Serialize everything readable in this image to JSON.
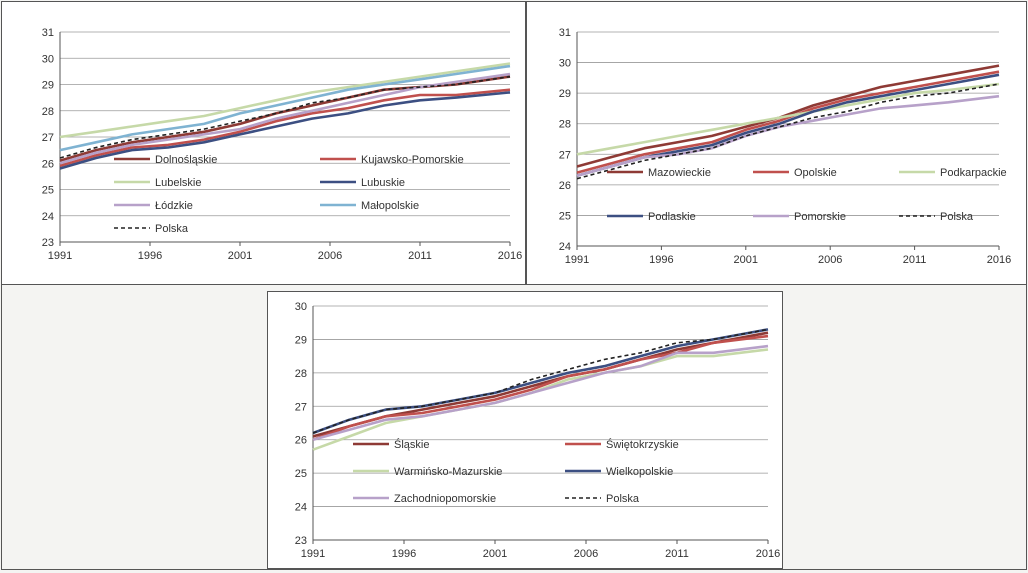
{
  "charts": [
    {
      "id": "tl",
      "legend": [
        {
          "label": "Dolnośląskie",
          "color": "#8e3a35",
          "dash": false
        },
        {
          "label": "Kujawsko-Pomorskie",
          "color": "#c0504d",
          "dash": false
        },
        {
          "label": "Lubelskie",
          "color": "#c6d9a8",
          "dash": false
        },
        {
          "label": "Lubuskie",
          "color": "#3c4f82",
          "dash": false
        },
        {
          "label": "Łódzkie",
          "color": "#b7a1c9",
          "dash": false
        },
        {
          "label": "Małopolskie",
          "color": "#7fb3d2",
          "dash": false
        },
        {
          "label": "Polska",
          "color": "#222222",
          "dash": true
        }
      ]
    },
    {
      "id": "tr",
      "legend": [
        {
          "label": "Mazowieckie",
          "color": "#8e3a35",
          "dash": false
        },
        {
          "label": "Opolskie",
          "color": "#c0504d",
          "dash": false
        },
        {
          "label": "Podkarpackie",
          "color": "#c6d9a8",
          "dash": false
        },
        {
          "label": "Podlaskie",
          "color": "#3c4f82",
          "dash": false
        },
        {
          "label": "Pomorskie",
          "color": "#b7a1c9",
          "dash": false
        },
        {
          "label": "Polska",
          "color": "#222222",
          "dash": true
        }
      ]
    },
    {
      "id": "bc",
      "legend": [
        {
          "label": "Śląskie",
          "color": "#8e3a35",
          "dash": false
        },
        {
          "label": "Świętokrzyskie",
          "color": "#c0504d",
          "dash": false
        },
        {
          "label": "Warmińsko-Mazurskie",
          "color": "#c6d9a8",
          "dash": false
        },
        {
          "label": "Wielkopolskie",
          "color": "#3c4f82",
          "dash": false
        },
        {
          "label": "Zachodniopomorskie",
          "color": "#b7a1c9",
          "dash": false
        },
        {
          "label": "Polska",
          "color": "#222222",
          "dash": true
        }
      ]
    }
  ],
  "chart_data": [
    {
      "type": "line",
      "x_ticks": [
        "1991",
        "1996",
        "2001",
        "2006",
        "2011",
        "2016"
      ],
      "x_range": [
        1991,
        2016
      ],
      "ylim": [
        23,
        31
      ],
      "y_ticks": [
        23,
        24,
        25,
        26,
        27,
        28,
        29,
        30,
        31
      ],
      "grid": true,
      "legend_position": "inside-bottom",
      "series": [
        {
          "name": "Dolnośląskie",
          "x": [
            1991,
            1993,
            1995,
            1997,
            1999,
            2001,
            2003,
            2005,
            2007,
            2009,
            2011,
            2013,
            2016
          ],
          "y": [
            26.1,
            26.5,
            26.8,
            27.0,
            27.2,
            27.5,
            27.9,
            28.2,
            28.5,
            28.8,
            28.9,
            29.0,
            29.3
          ]
        },
        {
          "name": "Kujawsko-Pomorskie",
          "x": [
            1991,
            1993,
            1995,
            1997,
            1999,
            2001,
            2003,
            2005,
            2007,
            2009,
            2011,
            2013,
            2016
          ],
          "y": [
            25.9,
            26.3,
            26.6,
            26.7,
            26.9,
            27.2,
            27.6,
            27.9,
            28.1,
            28.4,
            28.6,
            28.6,
            28.8
          ]
        },
        {
          "name": "Lubelskie",
          "x": [
            1991,
            1993,
            1995,
            1997,
            1999,
            2001,
            2003,
            2005,
            2007,
            2009,
            2011,
            2013,
            2016
          ],
          "y": [
            27.0,
            27.2,
            27.4,
            27.6,
            27.8,
            28.1,
            28.4,
            28.7,
            28.9,
            29.1,
            29.3,
            29.5,
            29.8
          ]
        },
        {
          "name": "Lubuskie",
          "x": [
            1991,
            1993,
            1995,
            1997,
            1999,
            2001,
            2003,
            2005,
            2007,
            2009,
            2011,
            2013,
            2016
          ],
          "y": [
            25.8,
            26.2,
            26.5,
            26.6,
            26.8,
            27.1,
            27.4,
            27.7,
            27.9,
            28.2,
            28.4,
            28.5,
            28.7
          ]
        },
        {
          "name": "Łódzkie",
          "x": [
            1991,
            1993,
            1995,
            1997,
            1999,
            2001,
            2003,
            2005,
            2007,
            2009,
            2011,
            2013,
            2016
          ],
          "y": [
            26.0,
            26.4,
            26.7,
            26.9,
            27.1,
            27.3,
            27.7,
            28.0,
            28.3,
            28.6,
            28.9,
            29.1,
            29.4
          ]
        },
        {
          "name": "Małopolskie",
          "x": [
            1991,
            1993,
            1995,
            1997,
            1999,
            2001,
            2003,
            2005,
            2007,
            2009,
            2011,
            2013,
            2016
          ],
          "y": [
            26.5,
            26.8,
            27.1,
            27.3,
            27.5,
            27.9,
            28.2,
            28.5,
            28.8,
            29.0,
            29.2,
            29.4,
            29.7
          ]
        },
        {
          "name": "Polska",
          "x": [
            1991,
            1993,
            1995,
            1997,
            1999,
            2001,
            2003,
            2005,
            2007,
            2009,
            2011,
            2013,
            2016
          ],
          "y": [
            26.2,
            26.6,
            26.9,
            27.1,
            27.3,
            27.6,
            27.9,
            28.3,
            28.5,
            28.8,
            28.9,
            29.0,
            29.3
          ]
        }
      ]
    },
    {
      "type": "line",
      "x_ticks": [
        "1991",
        "1996",
        "2001",
        "2006",
        "2011",
        "2016"
      ],
      "x_range": [
        1991,
        2016
      ],
      "ylim": [
        24,
        31
      ],
      "y_ticks": [
        24,
        25,
        26,
        27,
        28,
        29,
        30,
        31
      ],
      "grid": true,
      "legend_position": "inside-bottom",
      "series": [
        {
          "name": "Mazowieckie",
          "x": [
            1991,
            1993,
            1995,
            1997,
            1999,
            2001,
            2003,
            2005,
            2007,
            2009,
            2011,
            2013,
            2016
          ],
          "y": [
            26.6,
            26.9,
            27.2,
            27.4,
            27.6,
            27.9,
            28.2,
            28.6,
            28.9,
            29.2,
            29.4,
            29.6,
            29.9
          ]
        },
        {
          "name": "Opolskie",
          "x": [
            1991,
            1993,
            1995,
            1997,
            1999,
            2001,
            2003,
            2005,
            2007,
            2009,
            2011,
            2013,
            2016
          ],
          "y": [
            26.4,
            26.7,
            27.0,
            27.2,
            27.4,
            27.8,
            28.1,
            28.5,
            28.8,
            29.0,
            29.2,
            29.4,
            29.7
          ]
        },
        {
          "name": "Podkarpackie",
          "x": [
            1991,
            1993,
            1995,
            1997,
            1999,
            2001,
            2003,
            2005,
            2007,
            2009,
            2011,
            2013,
            2016
          ],
          "y": [
            27.0,
            27.2,
            27.4,
            27.6,
            27.8,
            28.0,
            28.2,
            28.4,
            28.6,
            28.8,
            29.0,
            29.1,
            29.3
          ]
        },
        {
          "name": "Podlaskie",
          "x": [
            1991,
            1993,
            1995,
            1997,
            1999,
            2001,
            2003,
            2005,
            2007,
            2009,
            2011,
            2013,
            2016
          ],
          "y": [
            26.3,
            26.6,
            26.9,
            27.1,
            27.3,
            27.7,
            28.0,
            28.4,
            28.7,
            28.9,
            29.1,
            29.3,
            29.6
          ]
        },
        {
          "name": "Pomorskie",
          "x": [
            1991,
            1993,
            1995,
            1997,
            1999,
            2001,
            2003,
            2005,
            2007,
            2009,
            2011,
            2013,
            2016
          ],
          "y": [
            26.3,
            26.6,
            26.9,
            27.0,
            27.2,
            27.6,
            27.9,
            28.1,
            28.3,
            28.5,
            28.6,
            28.7,
            28.9
          ]
        },
        {
          "name": "Polska",
          "x": [
            1991,
            1993,
            1995,
            1997,
            1999,
            2001,
            2003,
            2005,
            2007,
            2009,
            2011,
            2013,
            2016
          ],
          "y": [
            26.2,
            26.5,
            26.8,
            27.0,
            27.2,
            27.6,
            27.9,
            28.2,
            28.4,
            28.7,
            28.9,
            29.0,
            29.3
          ]
        }
      ]
    },
    {
      "type": "line",
      "x_ticks": [
        "1991",
        "1996",
        "2001",
        "2006",
        "2011",
        "2016"
      ],
      "x_range": [
        1991,
        2016
      ],
      "ylim": [
        23,
        30
      ],
      "y_ticks": [
        23,
        24,
        25,
        26,
        27,
        28,
        29,
        30
      ],
      "grid": true,
      "legend_position": "inside-bottom",
      "series": [
        {
          "name": "Śląskie",
          "x": [
            1991,
            1993,
            1995,
            1997,
            1999,
            2001,
            2003,
            2005,
            2007,
            2009,
            2011,
            2013,
            2016
          ],
          "y": [
            26.1,
            26.4,
            26.7,
            26.9,
            27.1,
            27.3,
            27.6,
            27.9,
            28.1,
            28.4,
            28.7,
            28.9,
            29.2
          ]
        },
        {
          "name": "Świętokrzyskie",
          "x": [
            1991,
            1993,
            1995,
            1997,
            1999,
            2001,
            2003,
            2005,
            2007,
            2009,
            2011,
            2013,
            2016
          ],
          "y": [
            26.0,
            26.4,
            26.7,
            26.8,
            27.0,
            27.2,
            27.5,
            27.9,
            28.1,
            28.4,
            28.6,
            28.9,
            29.1
          ]
        },
        {
          "name": "Warmińsko-Mazurskie",
          "x": [
            1991,
            1993,
            1995,
            1997,
            1999,
            2001,
            2003,
            2005,
            2007,
            2009,
            2011,
            2013,
            2016
          ],
          "y": [
            25.7,
            26.1,
            26.5,
            26.7,
            26.9,
            27.1,
            27.4,
            27.8,
            28.0,
            28.2,
            28.5,
            28.5,
            28.7
          ]
        },
        {
          "name": "Wielkopolskie",
          "x": [
            1991,
            1993,
            1995,
            1997,
            1999,
            2001,
            2003,
            2005,
            2007,
            2009,
            2011,
            2013,
            2016
          ],
          "y": [
            26.2,
            26.6,
            26.9,
            27.0,
            27.2,
            27.4,
            27.7,
            28.0,
            28.2,
            28.5,
            28.8,
            29.0,
            29.3
          ]
        },
        {
          "name": "Zachodniopomorskie",
          "x": [
            1991,
            1993,
            1995,
            1997,
            1999,
            2001,
            2003,
            2005,
            2007,
            2009,
            2011,
            2013,
            2016
          ],
          "y": [
            26.0,
            26.3,
            26.6,
            26.7,
            26.9,
            27.1,
            27.4,
            27.7,
            28.0,
            28.2,
            28.6,
            28.6,
            28.8
          ]
        },
        {
          "name": "Polska",
          "x": [
            1991,
            1993,
            1995,
            1997,
            1999,
            2001,
            2003,
            2005,
            2007,
            2009,
            2011,
            2013,
            2016
          ],
          "y": [
            26.2,
            26.6,
            26.9,
            27.0,
            27.2,
            27.4,
            27.8,
            28.1,
            28.4,
            28.6,
            28.9,
            29.0,
            29.3
          ]
        }
      ]
    }
  ]
}
